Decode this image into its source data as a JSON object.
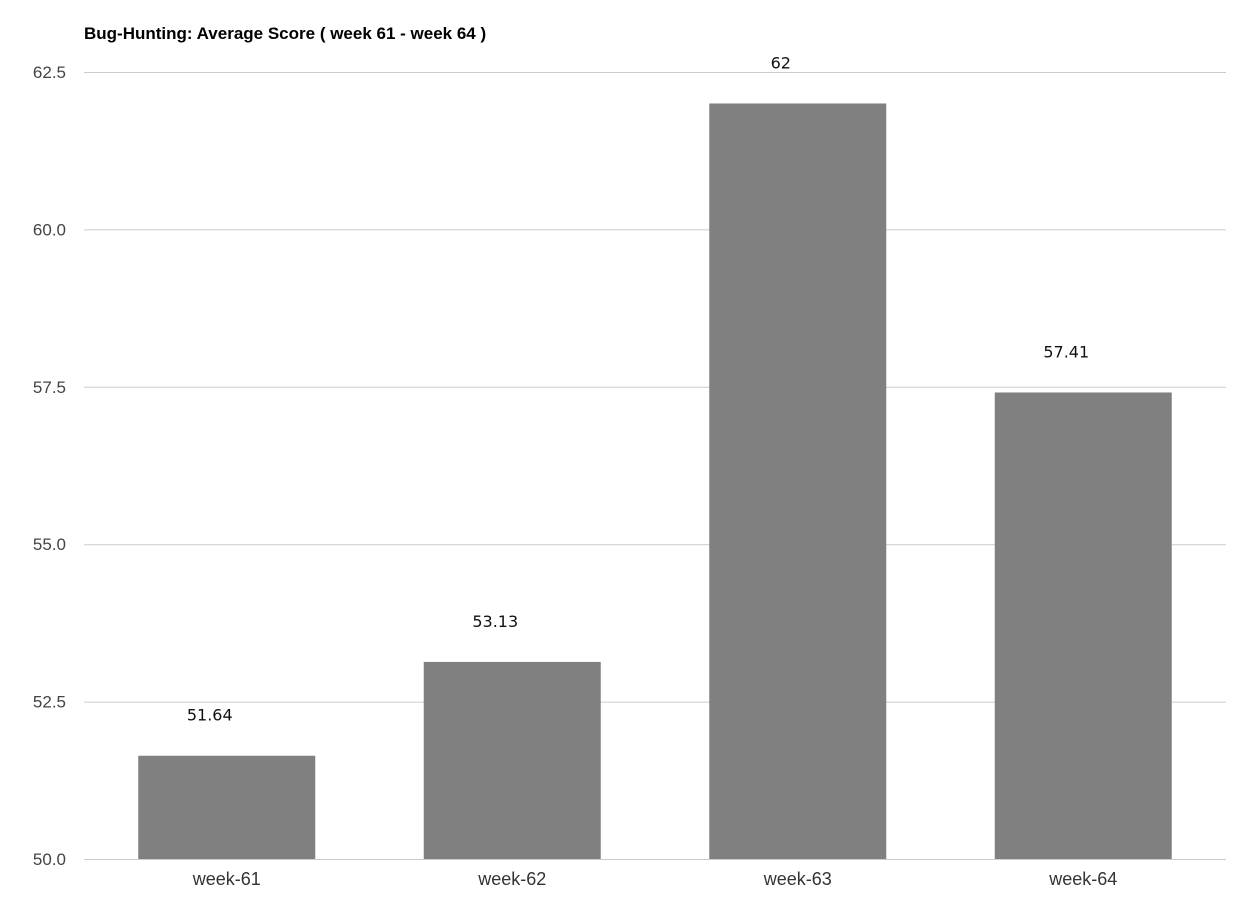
{
  "chart_data": {
    "type": "bar",
    "title": "Bug-Hunting: Average Score ( week 61 - week 64 )",
    "xlabel": "",
    "ylabel": "",
    "categories": [
      "week-61",
      "week-62",
      "week-63",
      "week-64"
    ],
    "values": [
      51.64,
      53.13,
      62,
      57.41
    ],
    "data_labels": [
      "51.64",
      "53.13",
      "62",
      "57.41"
    ],
    "ylim": [
      50.0,
      62.5
    ],
    "y_ticks": [
      "50.0",
      "52.5",
      "55.0",
      "57.5",
      "60.0",
      "62.5"
    ],
    "grid": true,
    "legend": "none",
    "bar_color": "#808080"
  }
}
